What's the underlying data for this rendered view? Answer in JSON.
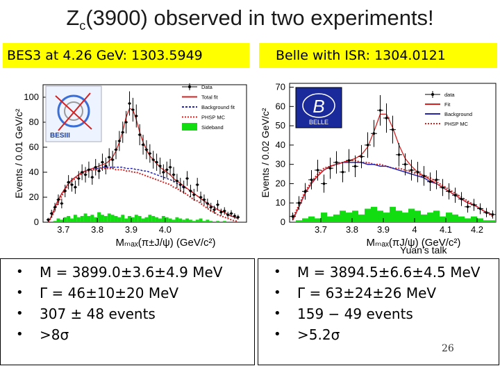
{
  "slide": {
    "title_main": "Z",
    "title_sub": "c",
    "title_rest": "(3900) observed in two experiments!",
    "slide_number": "26",
    "talk_note": "Yuan’s talk"
  },
  "left_banner": "BES3 at 4.26 GeV: 1303.5949",
  "right_banner": "Belle with ISR:  1304.0121",
  "left_bullets": [
    "M = 3899.0±3.6±4.9 MeV",
    "Γ = 46±10±20 MeV",
    "307 ± 48 events",
    ">8σ"
  ],
  "right_bullets": [
    "M = 3894.5±6.6±4.5 MeV",
    "Γ = 63±24±26 MeV",
    "159 − 49 events",
    ">5.2σ"
  ],
  "colors": {
    "banner": "#ffff00",
    "data": "#000000",
    "fit": "#d62020",
    "background": "#2222aa",
    "phsp": "#d62020",
    "sideband": "#11dd11"
  },
  "chart_data": [
    {
      "type": "scatter",
      "experiment": "BESIII",
      "logo_text": "BESIII",
      "ylabel": "Events / 0.01 GeV/c²",
      "xlabel": "Mₘₐₓ(π±J/ψ) (GeV/c²)",
      "xlim": [
        3.64,
        4.24
      ],
      "ylim": [
        0,
        110
      ],
      "xticks": [
        "3.7",
        "3.8",
        "3.9",
        "4.0"
      ],
      "yticks": [
        "0",
        "20",
        "40",
        "60",
        "80",
        "100"
      ],
      "legend": [
        "Data",
        "Total fit",
        "Background fit",
        "PHSP MC",
        "Sideband"
      ],
      "x": [
        3.655,
        3.665,
        3.675,
        3.685,
        3.695,
        3.705,
        3.715,
        3.725,
        3.735,
        3.745,
        3.755,
        3.765,
        3.775,
        3.785,
        3.795,
        3.805,
        3.815,
        3.825,
        3.835,
        3.845,
        3.855,
        3.865,
        3.875,
        3.885,
        3.895,
        3.905,
        3.915,
        3.925,
        3.935,
        3.945,
        3.955,
        3.965,
        3.975,
        3.985,
        3.995,
        4.005,
        4.015,
        4.025,
        4.035,
        4.045,
        4.055,
        4.065,
        4.075,
        4.085,
        4.095,
        4.105,
        4.115,
        4.125,
        4.135,
        4.145,
        4.155,
        4.165,
        4.175,
        4.185,
        4.195,
        4.205,
        4.215
      ],
      "y": [
        2,
        7,
        12,
        18,
        15,
        25,
        32,
        30,
        28,
        35,
        40,
        38,
        42,
        36,
        44,
        41,
        48,
        45,
        52,
        50,
        58,
        65,
        72,
        80,
        95,
        90,
        85,
        70,
        62,
        58,
        55,
        50,
        48,
        45,
        40,
        42,
        44,
        38,
        33,
        30,
        28,
        35,
        25,
        22,
        30,
        20,
        18,
        15,
        12,
        10,
        14,
        8,
        9,
        6,
        7,
        5,
        4
      ],
      "err": [
        1.5,
        3,
        3.5,
        4.2,
        3.9,
        5,
        5.7,
        5.5,
        5.3,
        5.9,
        6.3,
        6.2,
        6.5,
        6,
        6.6,
        6.4,
        6.9,
        6.7,
        7.2,
        7.1,
        7.6,
        8,
        8.5,
        9,
        9.7,
        9.5,
        9.2,
        8.4,
        7.9,
        7.6,
        7.4,
        7.1,
        6.9,
        6.7,
        6.3,
        6.5,
        6.6,
        6.2,
        5.7,
        5.5,
        5.3,
        5.9,
        5,
        4.7,
        5.5,
        4.5,
        4.2,
        3.9,
        3.5,
        3.2,
        3.7,
        2.8,
        3,
        2.4,
        2.6,
        2.2,
        2
      ],
      "total_fit": [
        0,
        5,
        12,
        18,
        23,
        27,
        31,
        34,
        36,
        38,
        40,
        41,
        42,
        43,
        44,
        45,
        46,
        47,
        49,
        52,
        57,
        64,
        73,
        84,
        91,
        90,
        82,
        72,
        64,
        58,
        53,
        50,
        47,
        44,
        42,
        40,
        38,
        35,
        33,
        31,
        29,
        27,
        25,
        23,
        21,
        19,
        17,
        15,
        13,
        12,
        10,
        9,
        8,
        6,
        5,
        4,
        3
      ],
      "background_fit": [
        0,
        5,
        12,
        18,
        23,
        27,
        31,
        34,
        36,
        38,
        40,
        41,
        42,
        43,
        43,
        43,
        44,
        44,
        44,
        44,
        44,
        44,
        44,
        43,
        43,
        43,
        42,
        42,
        41,
        41,
        40,
        39,
        38,
        37,
        36,
        35,
        34,
        33,
        31,
        30,
        28,
        27,
        25,
        23,
        21,
        19,
        17,
        15,
        13,
        12,
        10,
        9,
        8,
        6,
        5,
        4,
        3
      ],
      "phsp_mc": [
        0,
        4,
        10,
        16,
        21,
        26,
        30,
        33,
        35,
        37,
        39,
        40,
        41,
        42,
        42,
        42,
        43,
        43,
        43,
        43,
        42,
        42,
        42,
        41,
        41,
        40,
        40,
        39,
        38,
        37,
        36,
        35,
        34,
        33,
        32,
        31,
        30,
        28,
        27,
        25,
        24,
        22,
        20,
        18,
        17,
        15,
        13,
        11,
        9,
        8,
        6,
        5,
        4,
        3,
        2,
        1,
        1
      ],
      "sideband": [
        0,
        0,
        1,
        3,
        2,
        4,
        5,
        3,
        6,
        4,
        5,
        7,
        5,
        6,
        4,
        8,
        6,
        5,
        7,
        6,
        5,
        4,
        6,
        3,
        5,
        4,
        6,
        5,
        3,
        4,
        6,
        5,
        4,
        3,
        5,
        4,
        3,
        2,
        4,
        3,
        2,
        3,
        2,
        1,
        2,
        3,
        1,
        2,
        1,
        0,
        1,
        0,
        1,
        0,
        0,
        0,
        0
      ]
    },
    {
      "type": "scatter",
      "experiment": "Belle",
      "logo_text": "BELLE",
      "ylabel": "Events / 0.02 GeV/c²",
      "xlabel": "Mₘₐₓ(πJ/ψ) (GeV/c²)",
      "xlim": [
        3.6,
        4.26
      ],
      "ylim": [
        0,
        72
      ],
      "xticks": [
        "3.7",
        "3.8",
        "3.9",
        "4",
        "4.1",
        "4.2"
      ],
      "yticks": [
        "0",
        "10",
        "20",
        "30",
        "40",
        "50",
        "60",
        "70"
      ],
      "legend": [
        "data",
        "Fit",
        "Background",
        "PHSP MC"
      ],
      "x": [
        3.61,
        3.63,
        3.65,
        3.67,
        3.69,
        3.71,
        3.73,
        3.75,
        3.77,
        3.79,
        3.81,
        3.83,
        3.85,
        3.87,
        3.89,
        3.91,
        3.93,
        3.95,
        3.97,
        3.99,
        4.01,
        4.03,
        4.05,
        4.07,
        4.09,
        4.11,
        4.13,
        4.15,
        4.17,
        4.19,
        4.21,
        4.23,
        4.25
      ],
      "y": [
        3,
        10,
        16,
        22,
        27,
        20,
        28,
        31,
        26,
        32,
        29,
        34,
        40,
        46,
        58,
        54,
        48,
        35,
        30,
        27,
        26,
        24,
        21,
        22,
        18,
        16,
        14,
        12,
        8,
        9,
        7,
        5,
        4
      ],
      "err": [
        2,
        3.5,
        4.3,
        5,
        5.4,
        4.7,
        5.5,
        5.8,
        5.3,
        5.9,
        5.6,
        6,
        6.6,
        7,
        7.9,
        7.6,
        7.2,
        6.1,
        5.7,
        5.4,
        5.3,
        5.1,
        4.8,
        4.9,
        4.4,
        4.2,
        3.9,
        3.6,
        3,
        3.1,
        2.8,
        2.4,
        2.1
      ],
      "total_fit": [
        1,
        8,
        15,
        20,
        24,
        27,
        29,
        30,
        31,
        32,
        33,
        35,
        39,
        47,
        56,
        56,
        49,
        40,
        33,
        29,
        26,
        24,
        22,
        20,
        18,
        16,
        14,
        12,
        10,
        9,
        7,
        5,
        4
      ],
      "background_fit": [
        1,
        8,
        15,
        20,
        24,
        27,
        29,
        30,
        31,
        31,
        31,
        31,
        30,
        30,
        29,
        29,
        28,
        27,
        26,
        25,
        24,
        23,
        21,
        20,
        18,
        16,
        14,
        12,
        10,
        9,
        7,
        5,
        4
      ],
      "phsp_mc": [
        2,
        9,
        16,
        21,
        25,
        28,
        29,
        30,
        31,
        32,
        32,
        31,
        31,
        30,
        30,
        29,
        28,
        28,
        27,
        26,
        25,
        24,
        23,
        21,
        19,
        17,
        15,
        13,
        11,
        9,
        7,
        5,
        3
      ],
      "sideband": [
        0,
        1,
        2,
        3,
        2,
        5,
        3,
        4,
        6,
        5,
        6,
        4,
        7,
        8,
        6,
        5,
        8,
        6,
        5,
        7,
        6,
        4,
        5,
        6,
        3,
        5,
        4,
        3,
        2,
        3,
        2,
        1,
        1
      ]
    }
  ]
}
